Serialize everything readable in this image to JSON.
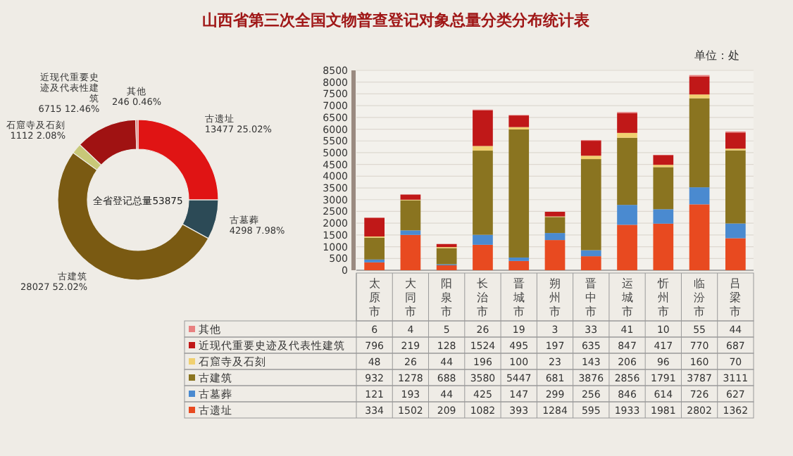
{
  "chart_data": [
    {
      "type": "donut",
      "categories": [
        "古遗址",
        "古墓葬",
        "古建筑",
        "石窟寺及石刻",
        "近现代重要史迹及代表性建筑",
        "其他"
      ],
      "values": [
        13477,
        4298,
        28027,
        1112,
        6715,
        246
      ],
      "colors": [
        "#e01414",
        "#2c4a56",
        "#7a5a12",
        "#c8c878",
        "#a01212",
        "#e07a7a"
      ],
      "value_labels": [
        "13477 25.02%",
        "4298 7.98%",
        "28027 52.02%",
        "1112 2.08%",
        "6715 12.46%",
        "246 0.46%"
      ],
      "annotations": [
        "全省登记总量53875"
      ]
    },
    {
      "type": "bar",
      "title": "山西省第三次全国文物普查登记对象总量分类分布统计表",
      "stacked": true,
      "annotations": [
        "单位：处"
      ],
      "categories": [
        "太原市",
        "大同市",
        "阳泉市",
        "长治市",
        "晋城市",
        "朔州市",
        "晋中市",
        "运城市",
        "忻州市",
        "临汾市",
        "吕梁市"
      ],
      "series": [
        {
          "name": "古遗址",
          "color": "#e84a20",
          "values": [
            334,
            1502,
            209,
            1082,
            393,
            1284,
            595,
            1933,
            1981,
            2802,
            1362
          ]
        },
        {
          "name": "古墓葬",
          "color": "#4a8ad0",
          "values": [
            121,
            193,
            44,
            425,
            147,
            299,
            256,
            846,
            614,
            726,
            627
          ]
        },
        {
          "name": "古建筑",
          "color": "#8a7420",
          "values": [
            932,
            1278,
            688,
            3580,
            5447,
            681,
            3876,
            2856,
            1791,
            3787,
            3111
          ]
        },
        {
          "name": "石窟寺及石刻",
          "color": "#f0d070",
          "values": [
            48,
            26,
            44,
            196,
            100,
            23,
            143,
            206,
            96,
            160,
            70
          ]
        },
        {
          "name": "近现代重要史迹及代表性建筑",
          "color": "#c01818",
          "values": [
            796,
            219,
            128,
            1524,
            495,
            197,
            635,
            847,
            417,
            770,
            687
          ]
        },
        {
          "name": "其他",
          "color": "#e88080",
          "values": [
            6,
            4,
            5,
            26,
            19,
            3,
            33,
            41,
            10,
            55,
            44
          ]
        }
      ],
      "ylim": [
        0,
        8500
      ],
      "yticks": [
        0,
        500,
        1000,
        1500,
        2000,
        2500,
        3000,
        3500,
        4000,
        4500,
        5000,
        5500,
        6000,
        6500,
        7000,
        7500,
        8000,
        8500
      ],
      "grid": "y",
      "legend": "bottom left",
      "data_labels": true
    }
  ]
}
